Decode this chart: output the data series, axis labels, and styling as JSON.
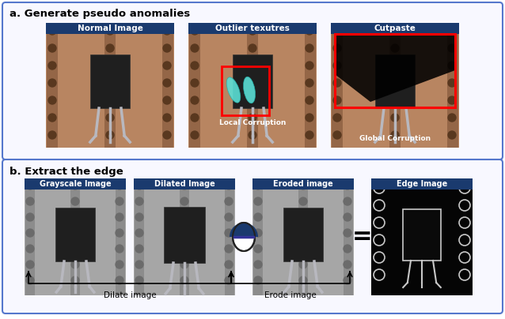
{
  "title_a": "a. Generate pseudo anomalies",
  "title_b": "b. Extract the edge",
  "labels_top": [
    "Normal Image",
    "Outlier texutres",
    "Cutpaste"
  ],
  "labels_bottom": [
    "Grayscale Image",
    "Dilated Image",
    "Eroded image",
    "Edge Image"
  ],
  "label_local": "Local Corruption",
  "label_global": "Global Corruption",
  "label_dilate": "Dilate image",
  "label_erode": "Erode image",
  "header_bg": "#1a3a6e",
  "header_text_color": "#ffffff",
  "red_box": "#ff0000",
  "fig_bg": "#ffffff",
  "border_color": "#5577cc",
  "section_bg": "#f8f8ff",
  "pcb_brown": [
    0.72,
    0.52,
    0.38
  ],
  "pcb_gray": [
    0.65,
    0.65,
    0.65
  ],
  "dot_brown": [
    0.35,
    0.22,
    0.12
  ],
  "dot_gray": [
    0.42,
    0.42,
    0.42
  ],
  "comp_dark": [
    0.12,
    0.12,
    0.12
  ],
  "leg_silver": [
    0.72,
    0.72,
    0.75
  ],
  "stripe_brown": [
    0.58,
    0.4,
    0.28
  ],
  "stripe_gray": [
    0.55,
    0.55,
    0.55
  ]
}
